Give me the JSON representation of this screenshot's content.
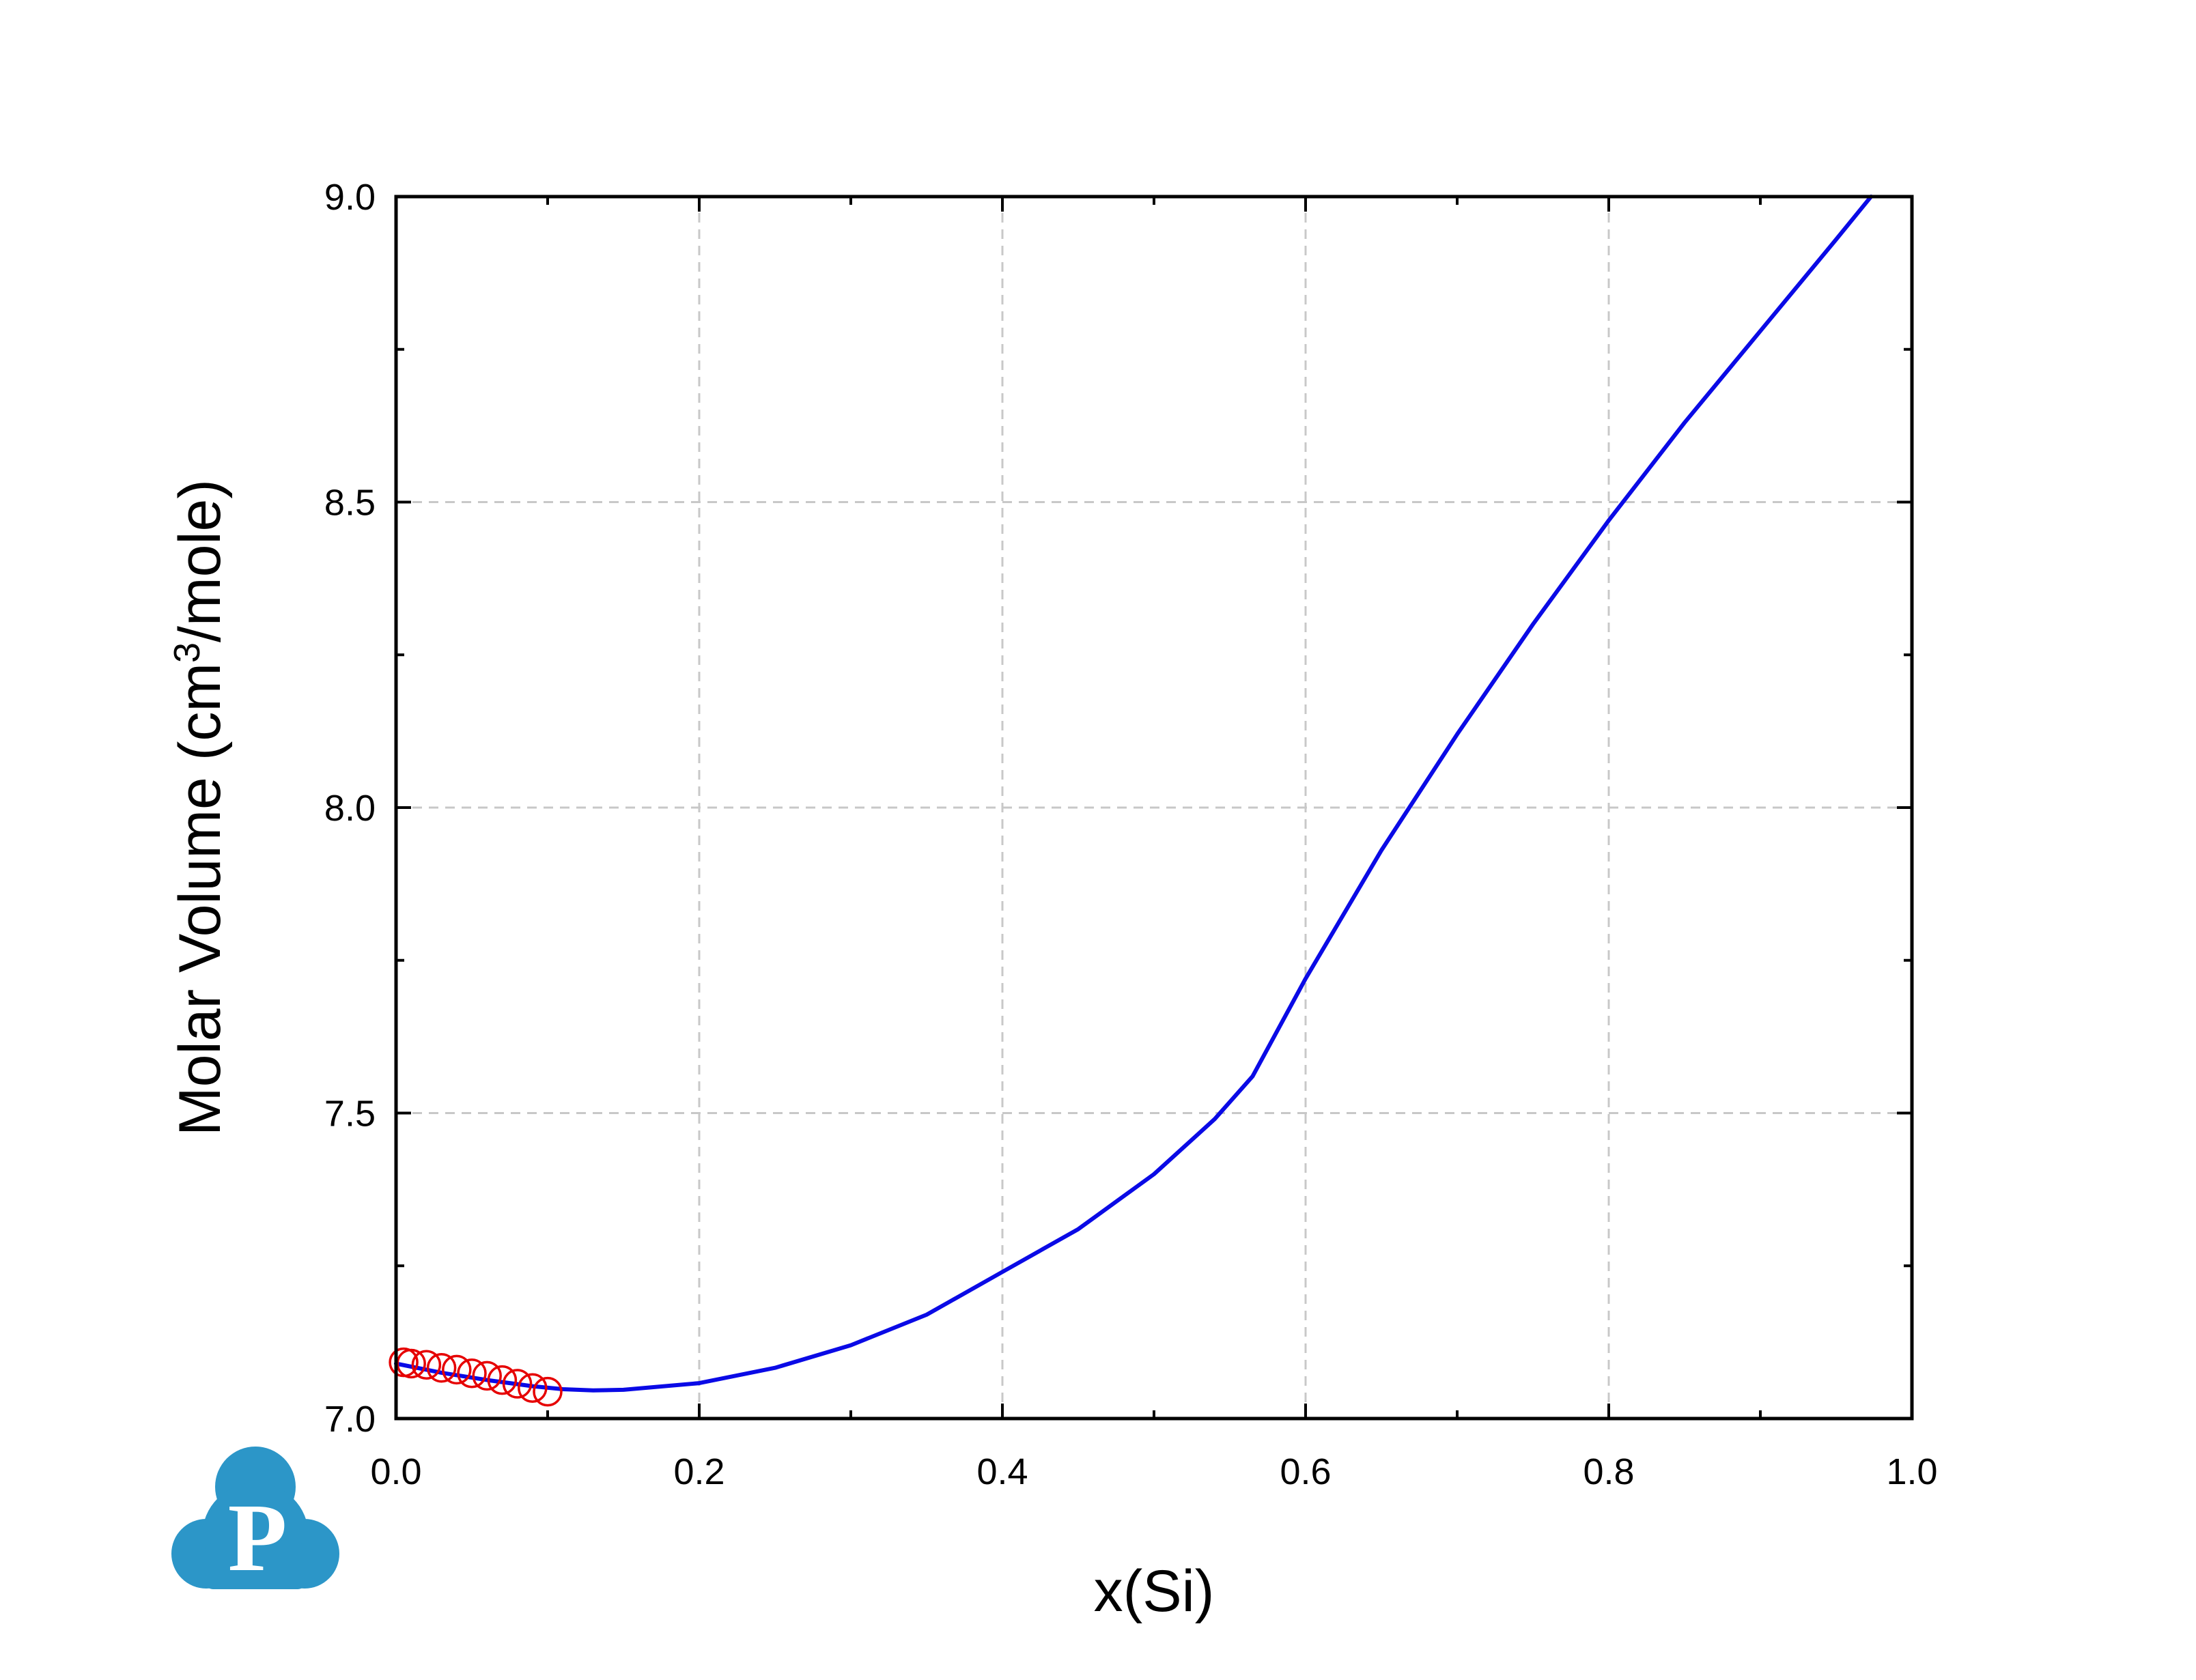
{
  "colors": {
    "line": "#0a0ae6",
    "markers": "#e60000",
    "logo": "#2c96c8",
    "logo_letter": "#ffffff"
  },
  "logo": {
    "icon": "cloud-p-logo",
    "letter": "P"
  },
  "chart_data": {
    "type": "line",
    "title": "",
    "xlabel": "x(Si)",
    "ylabel": {
      "prefix": "Molar Volume (cm",
      "superscript": "3",
      "suffix": "/mole)"
    },
    "xlim": [
      0.0,
      1.0
    ],
    "ylim": [
      7.0,
      9.0
    ],
    "xticks": [
      "0.0",
      "0.2",
      "0.4",
      "0.6",
      "0.8",
      "1.0"
    ],
    "yticks": [
      "7.0",
      "7.5",
      "8.0",
      "8.5",
      "9.0"
    ],
    "xtick_values": [
      0.0,
      0.2,
      0.4,
      0.6,
      0.8,
      1.0
    ],
    "ytick_values": [
      7.0,
      7.5,
      8.0,
      8.5,
      9.0
    ],
    "x_minor_step": 0.1,
    "y_minor_step": 0.25,
    "grid": true,
    "legend": "none",
    "series": [
      {
        "type": "line",
        "x": [
          0.0,
          0.03,
          0.06,
          0.09,
          0.11,
          0.13,
          0.15,
          0.2,
          0.25,
          0.3,
          0.35,
          0.4,
          0.45,
          0.5,
          0.54,
          0.565,
          0.6,
          0.65,
          0.7,
          0.75,
          0.8,
          0.85,
          0.9,
          0.95,
          0.973
        ],
        "y": [
          7.09,
          7.075,
          7.063,
          7.053,
          7.048,
          7.046,
          7.047,
          7.058,
          7.083,
          7.12,
          7.17,
          7.24,
          7.31,
          7.4,
          7.49,
          7.56,
          7.72,
          7.93,
          8.12,
          8.3,
          8.47,
          8.63,
          8.78,
          8.93,
          9.0
        ]
      },
      {
        "type": "scatter",
        "marker": "open-circle",
        "x": [
          0.005,
          0.01,
          0.02,
          0.03,
          0.04,
          0.05,
          0.06,
          0.07,
          0.08,
          0.09,
          0.1
        ],
        "y": [
          7.092,
          7.09,
          7.088,
          7.083,
          7.08,
          7.074,
          7.07,
          7.063,
          7.057,
          7.05,
          7.044
        ]
      }
    ]
  }
}
